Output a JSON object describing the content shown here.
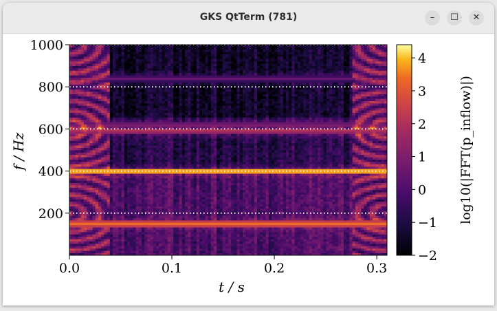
{
  "window": {
    "title": "GKS QtTerm (781)",
    "controls": {
      "minimize": "–",
      "maximize": "☐",
      "close": "✕"
    }
  },
  "chart_data": {
    "type": "heatmap",
    "description_note": "",
    "xlabel": "t / s",
    "ylabel": "f / Hz",
    "xlim": [
      0.0,
      0.31
    ],
    "ylim": [
      0,
      1000
    ],
    "xticks": [
      "0.0",
      "0.1",
      "0.2",
      "0.3"
    ],
    "xtick_values": [
      0.0,
      0.1,
      0.2,
      0.3
    ],
    "yticks": [
      "200",
      "400",
      "600",
      "800",
      "1000"
    ],
    "ytick_values": [
      200,
      400,
      600,
      800,
      1000
    ],
    "colormap": "inferno",
    "colorbar": {
      "label": "log10(|FFT(p_inflow)|)",
      "range": [
        -2,
        4.4
      ],
      "ticks": [
        "−2",
        "−1",
        "0",
        "1",
        "2",
        "3",
        "4"
      ],
      "tick_values": [
        -2,
        -1,
        0,
        1,
        2,
        3,
        4
      ]
    },
    "dotted_reference_lines_hz": [
      200,
      400,
      600,
      800,
      1000
    ],
    "features": {
      "transient_regions_s": [
        [
          0.0,
          0.04
        ],
        [
          0.275,
          0.31
        ]
      ],
      "bright_bands": [
        {
          "f": 400,
          "level": 4.3
        },
        {
          "f": 150,
          "level": 3.4
        },
        {
          "f": 590,
          "level": 2.0
        },
        {
          "f": 620,
          "level": 1.2
        },
        {
          "f": 840,
          "level": 0.6
        }
      ]
    }
  }
}
